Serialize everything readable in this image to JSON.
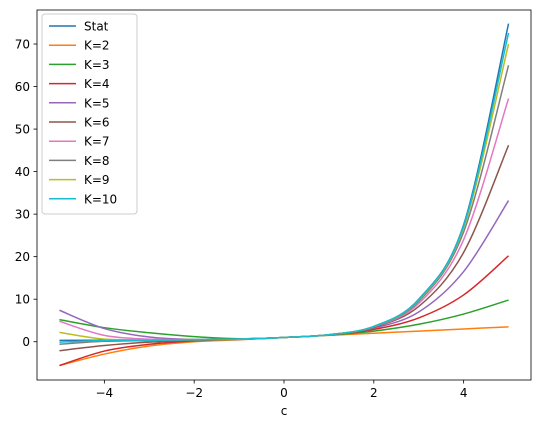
{
  "chart_data": {
    "type": "line",
    "title": "",
    "xlabel": "c",
    "ylabel": "",
    "xlim": [
      -5.5,
      5.5
    ],
    "ylim": [
      -9,
      78
    ],
    "grid": false,
    "legend_position": "upper-left",
    "x_ticks": [
      -4,
      -2,
      0,
      2,
      4
    ],
    "x_tick_labels": [
      "−4",
      "−2",
      "0",
      "2",
      "4"
    ],
    "y_ticks": [
      0,
      10,
      20,
      30,
      40,
      50,
      60,
      70
    ],
    "y_tick_labels": [
      "0",
      "10",
      "20",
      "30",
      "40",
      "50",
      "60",
      "70"
    ],
    "x": [
      -5,
      -4,
      -3,
      -2,
      -1,
      0,
      1,
      2,
      3,
      4,
      5
    ],
    "series": [
      {
        "name": "Stat",
        "color": "#1f77b4",
        "values": [
          0.31,
          0.36,
          0.42,
          0.51,
          0.66,
          1.0,
          1.65,
          3.6,
          10.0,
          27.5,
          74.8
        ]
      },
      {
        "name": "K=2",
        "color": "#ff7f0e",
        "values": [
          -5.6,
          -2.9,
          -1.0,
          0.0,
          0.45,
          1.0,
          1.5,
          2.0,
          2.5,
          3.0,
          3.5
        ]
      },
      {
        "name": "K=3",
        "color": "#2ca02c",
        "values": [
          5.2,
          3.3,
          2.1,
          1.2,
          0.7,
          1.0,
          1.55,
          2.5,
          4.1,
          6.5,
          9.8
        ]
      },
      {
        "name": "K=4",
        "color": "#d62728",
        "values": [
          -5.6,
          -2.2,
          -0.6,
          0.2,
          0.6,
          1.0,
          1.6,
          2.9,
          5.6,
          11.0,
          20.2
        ]
      },
      {
        "name": "K=5",
        "color": "#9467bd",
        "values": [
          7.4,
          3.1,
          1.1,
          0.5,
          0.55,
          1.0,
          1.65,
          3.2,
          7.0,
          16.5,
          33.2
        ]
      },
      {
        "name": "K=6",
        "color": "#8c564b",
        "values": [
          -2.1,
          -0.9,
          -0.1,
          0.25,
          0.55,
          1.0,
          1.65,
          3.4,
          8.3,
          21.0,
          46.2
        ]
      },
      {
        "name": "K=7",
        "color": "#e377c2",
        "values": [
          4.8,
          1.5,
          0.6,
          0.5,
          0.6,
          1.0,
          1.65,
          3.5,
          9.0,
          24.0,
          57.2
        ]
      },
      {
        "name": "K=8",
        "color": "#7f7f7f",
        "values": [
          -0.6,
          0.1,
          0.25,
          0.4,
          0.6,
          1.0,
          1.65,
          3.55,
          9.5,
          25.8,
          65.0
        ]
      },
      {
        "name": "K=9",
        "color": "#bcbd22",
        "values": [
          2.2,
          0.6,
          0.45,
          0.5,
          0.62,
          1.0,
          1.65,
          3.6,
          9.8,
          26.8,
          70.0
        ]
      },
      {
        "name": "K=10",
        "color": "#17becf",
        "values": [
          -0.1,
          0.3,
          0.35,
          0.5,
          0.64,
          1.0,
          1.65,
          3.6,
          9.9,
          27.2,
          72.6
        ]
      }
    ]
  }
}
